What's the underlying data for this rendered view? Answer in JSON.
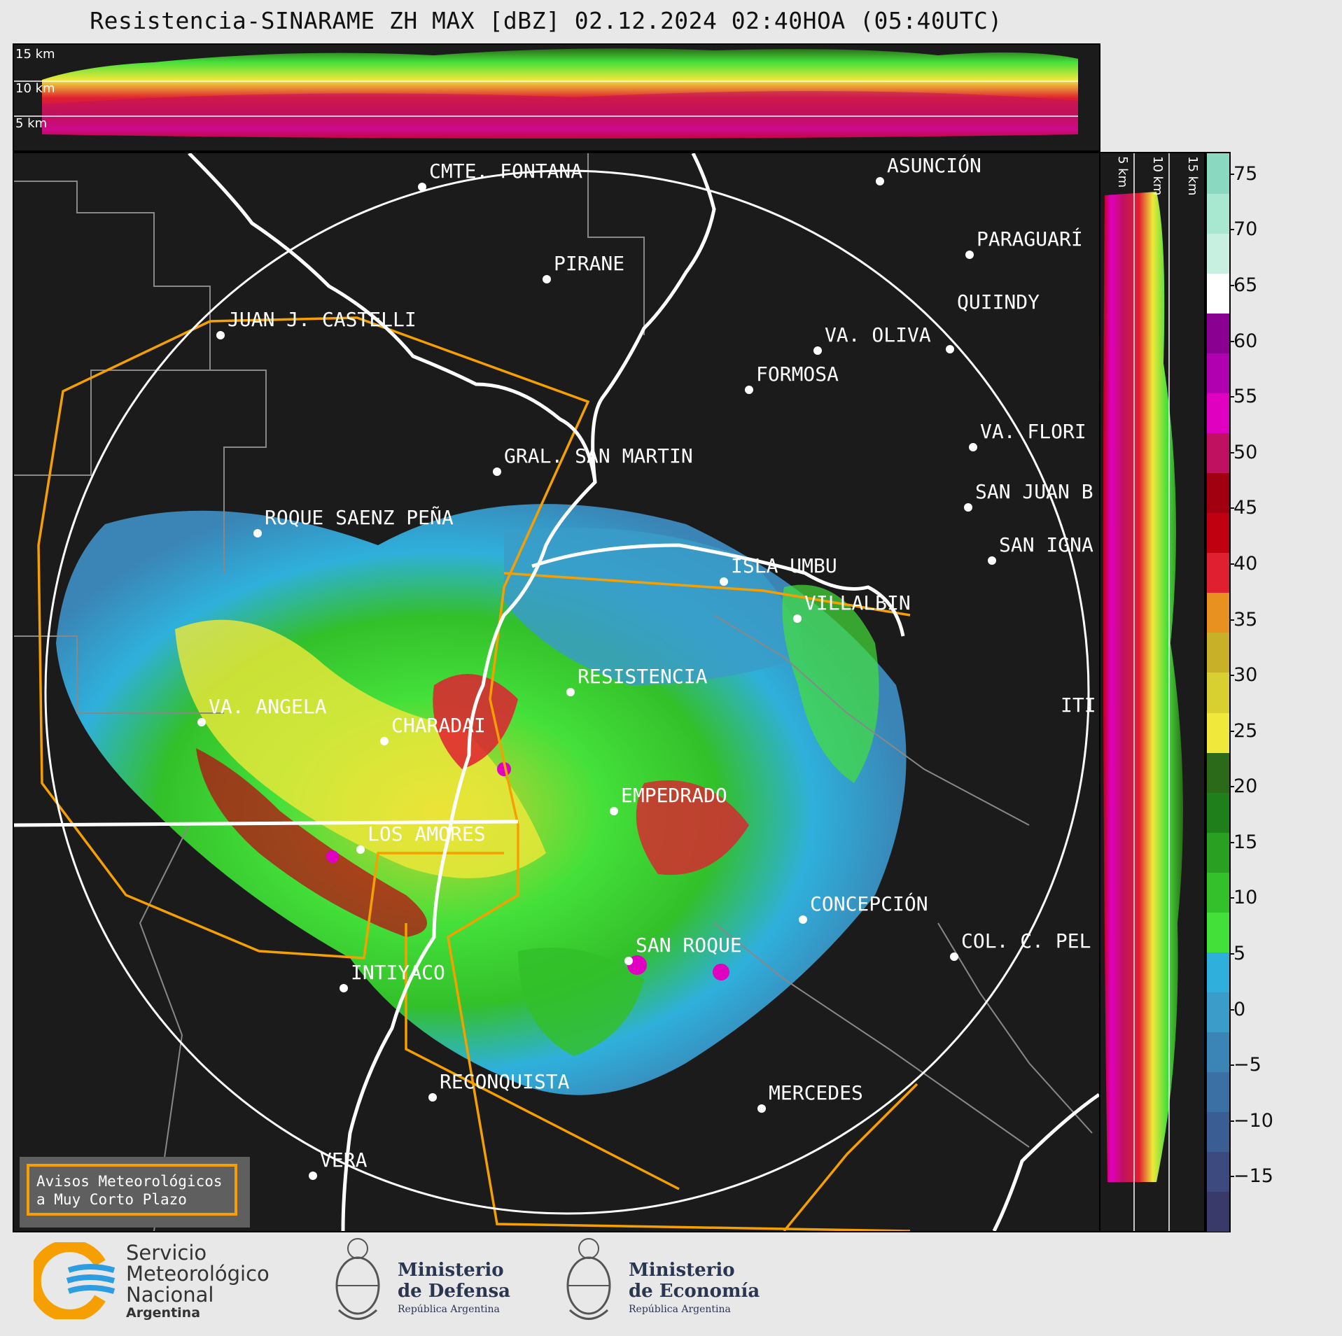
{
  "title": "Resistencia-SINARAME ZH MAX [dBZ] 02.12.2024 02:40HOA (05:40UTC)",
  "top_panel": {
    "altitude_labels": [
      "15 km",
      "10 km",
      "5 km"
    ]
  },
  "side_panel": {
    "altitude_labels": [
      "5 km",
      "10 km",
      "15 km"
    ]
  },
  "colorbar": {
    "unit": "dBZ",
    "ticks": [
      "75",
      "70",
      "65",
      "60",
      "55",
      "50",
      "45",
      "40",
      "35",
      "30",
      "25",
      "20",
      "15",
      "10",
      "5",
      "0",
      "−5",
      "−10",
      "−15"
    ],
    "range": [
      -20,
      77
    ],
    "colors": [
      "#3a3a6a",
      "#3d4a80",
      "#3a5d93",
      "#3a70a3",
      "#3a85b5",
      "#3a9cc8",
      "#2fb0dc",
      "#44e03a",
      "#33c02a",
      "#2aa022",
      "#1f7f1a",
      "#2a6a18",
      "#f0e83a",
      "#d8d030",
      "#c8b028",
      "#e89020",
      "#e02030",
      "#c00010",
      "#a00010",
      "#c01060",
      "#e000c0",
      "#b000b0",
      "#8a0090",
      "#ffffff",
      "#c8f0e0",
      "#a8e8d0",
      "#8ad8c0"
    ]
  },
  "cities": [
    {
      "name": "CMTE. FONTANA",
      "label": "CMTE. FONTANA"
    },
    {
      "name": "ASUNCIÓN",
      "label": "ASUNCIÓN"
    },
    {
      "name": "PARAGUARÍ",
      "label": "PARAGUARÍ"
    },
    {
      "name": "PIRANE",
      "label": "PIRANE"
    },
    {
      "name": "JUAN J. CASTELLI",
      "label": "JUAN J. CASTELLI"
    },
    {
      "name": "VA. OLIVA",
      "label": "VA. OLIVA"
    },
    {
      "name": "QUIINDY",
      "label": "QUIINDY"
    },
    {
      "name": "FORMOSA",
      "label": "FORMOSA"
    },
    {
      "name": "VA. FLORIDA",
      "label": "VA. FLORI"
    },
    {
      "name": "GRAL. SAN MARTIN",
      "label": "GRAL. SAN MARTIN"
    },
    {
      "name": "SAN JUAN B",
      "label": "SAN JUAN B"
    },
    {
      "name": "ROQUE SAENZ PEÑA",
      "label": "ROQUE SAENZ PEÑA"
    },
    {
      "name": "SAN IGNACIO",
      "label": "SAN IGNA"
    },
    {
      "name": "ISLA UMBU",
      "label": "ISLA UMBU"
    },
    {
      "name": "VILLALBIN",
      "label": "VILLALBIN"
    },
    {
      "name": "RESISTENCIA",
      "label": "RESISTENCIA"
    },
    {
      "name": "VA. ANGELA",
      "label": "VA. ANGELA"
    },
    {
      "name": "CHARADAI",
      "label": "CHARADAI"
    },
    {
      "name": "ITI",
      "label": "ITI"
    },
    {
      "name": "EMPEDRADO",
      "label": "EMPEDRADO"
    },
    {
      "name": "LOS AMORES",
      "label": "LOS AMORES"
    },
    {
      "name": "CONCEPCIÓN",
      "label": "CONCEPCIÓN"
    },
    {
      "name": "SAN ROQUE",
      "label": "SAN ROQUE"
    },
    {
      "name": "COL. C. PEL",
      "label": "COL. C. PEL"
    },
    {
      "name": "INTIYACO",
      "label": "INTIYACO"
    },
    {
      "name": "RECONQUISTA",
      "label": "RECONQUISTA"
    },
    {
      "name": "MERCEDES",
      "label": "MERCEDES"
    },
    {
      "name": "VERA",
      "label": "VERA"
    }
  ],
  "alert_box": {
    "line1": "Avisos Meteorológicos",
    "line2": "a Muy Corto Plazo"
  },
  "logos": {
    "smn": {
      "line1": "Servicio",
      "line2": "Meteorológico",
      "line3": "Nacional",
      "line4": "Argentina"
    },
    "defensa": {
      "line1": "Ministerio",
      "line2": "de Defensa",
      "line3": "República Argentina"
    },
    "economia": {
      "line1": "Ministerio",
      "line2": "de Economía",
      "line3": "República Argentina"
    }
  },
  "colors": {
    "background": "#1b1b1b",
    "border_orange": "#f5a000",
    "river_white": "#ffffff",
    "boundary_gray": "#888888"
  }
}
